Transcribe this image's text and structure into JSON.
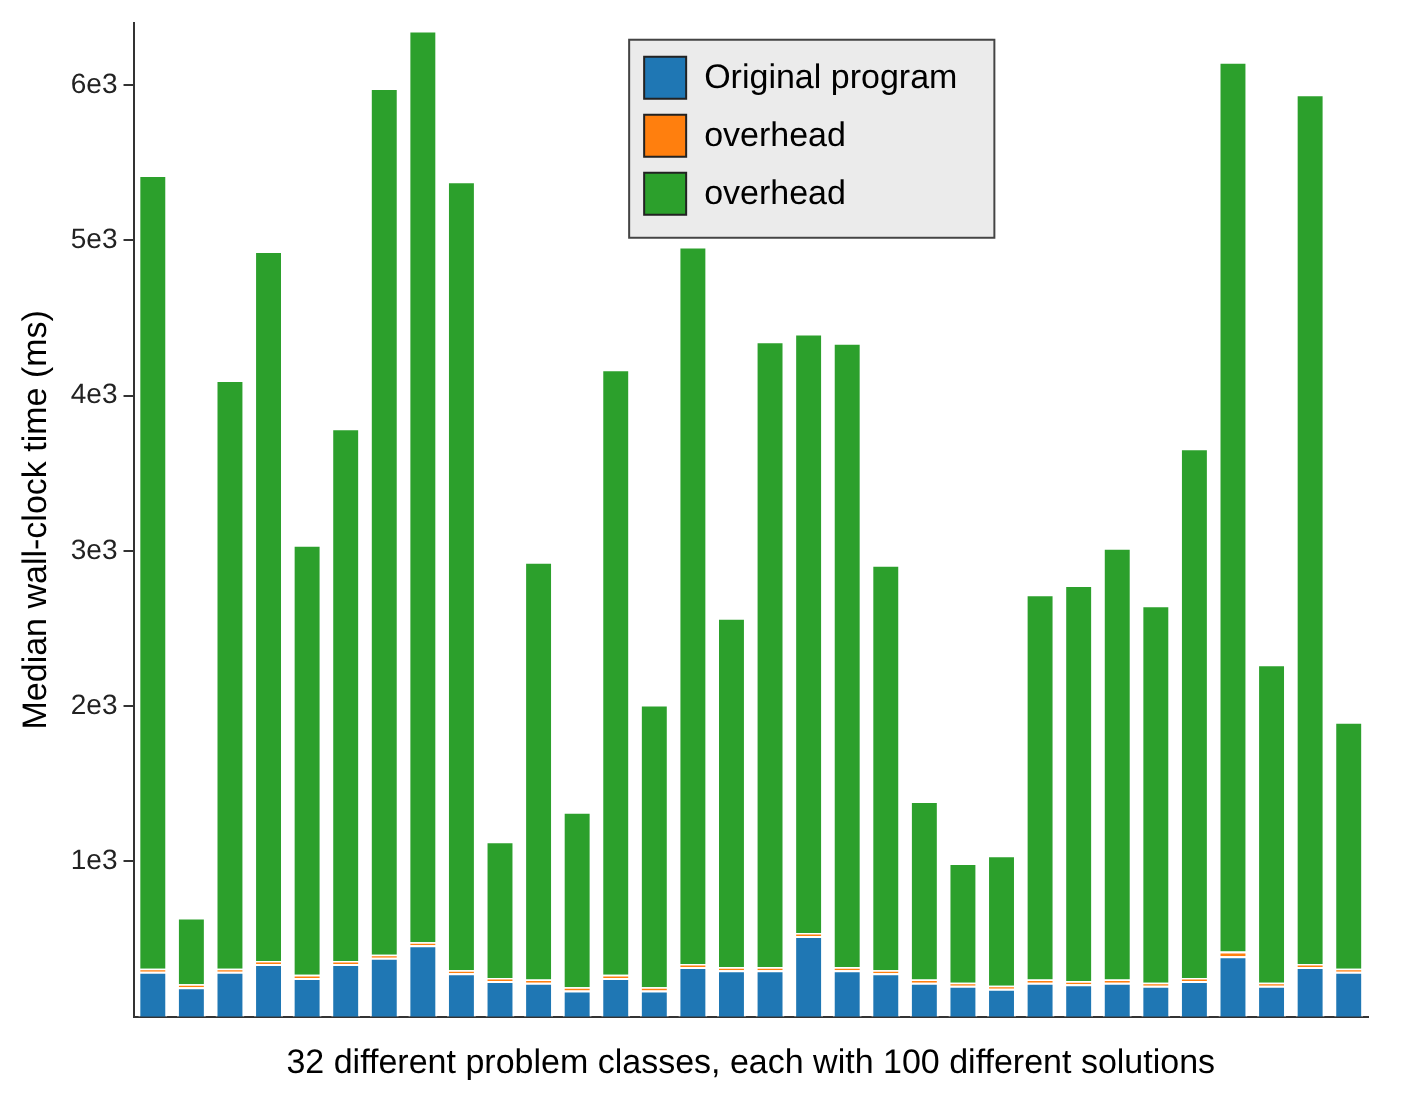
{
  "chart_data": {
    "type": "bar",
    "stacked": true,
    "xlabel": "32 different problem classes, each with 100 different solutions",
    "ylabel": "Median wall-clock time (ms)",
    "categories": [
      null,
      null,
      null,
      null,
      null,
      null,
      null,
      null,
      null,
      null,
      null,
      null,
      null,
      null,
      null,
      null,
      null,
      null,
      null,
      null,
      null,
      null,
      null,
      null,
      null,
      null,
      null,
      null,
      null,
      null,
      null,
      null
    ],
    "ylim": [
      0,
      6400
    ],
    "yticks": [
      {
        "value": 1000,
        "label": "1e3"
      },
      {
        "value": 2000,
        "label": "2e3"
      },
      {
        "value": 3000,
        "label": "3e3"
      },
      {
        "value": 4000,
        "label": "4e3"
      },
      {
        "value": 5000,
        "label": "5e3"
      },
      {
        "value": 6000,
        "label": "6e3"
      }
    ],
    "grid": false,
    "legend": "top",
    "series": [
      {
        "name": "Original program",
        "color": "#1f77b4",
        "values": [
          290,
          190,
          290,
          340,
          250,
          340,
          380,
          460,
          280,
          230,
          220,
          170,
          250,
          170,
          320,
          300,
          300,
          520,
          300,
          280,
          220,
          200,
          180,
          220,
          210,
          220,
          200,
          230,
          390,
          200,
          320,
          290
        ]
      },
      {
        "name": "overhead",
        "color": "#ff7f0e",
        "values": [
          20,
          20,
          20,
          20,
          20,
          20,
          20,
          20,
          20,
          20,
          20,
          20,
          20,
          20,
          20,
          20,
          20,
          20,
          20,
          20,
          20,
          20,
          20,
          20,
          20,
          20,
          20,
          20,
          30,
          20,
          20,
          20
        ]
      },
      {
        "name": "overhead",
        "color": "#2ca02c",
        "values": [
          5110,
          430,
          3790,
          4570,
          2770,
          3430,
          5580,
          5870,
          5080,
          880,
          2690,
          1130,
          3900,
          1820,
          4620,
          2250,
          4030,
          3860,
          4020,
          2610,
          1150,
          770,
          840,
          2480,
          2550,
          2780,
          2430,
          3410,
          5730,
          2050,
          5600,
          1590
        ]
      }
    ]
  }
}
